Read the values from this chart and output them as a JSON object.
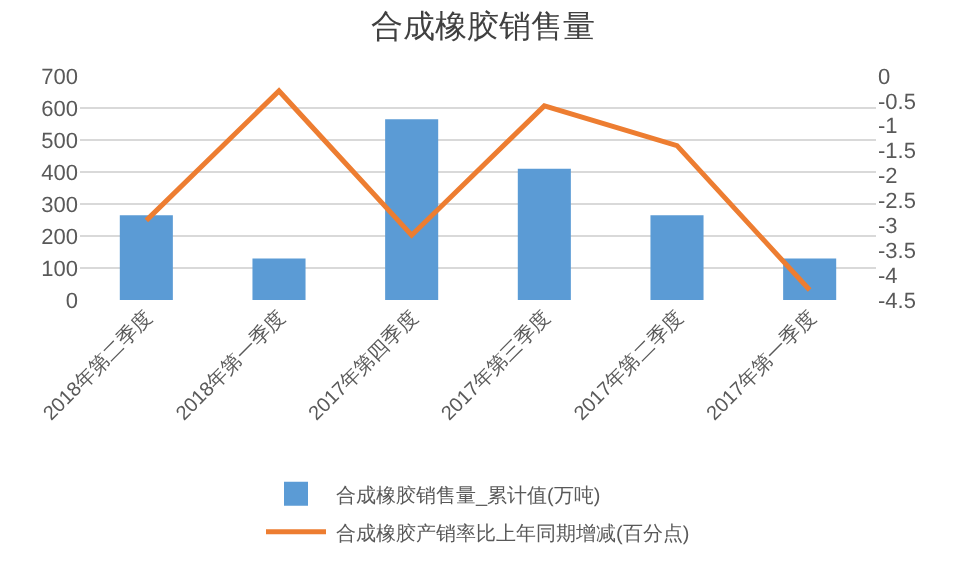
{
  "chart_data": {
    "type": "bar",
    "title": "合成橡胶销售量",
    "categories": [
      "2018年第二季度",
      "2018年第一季度",
      "2017年第四季度",
      "2017年第三季度",
      "2017年第二季度",
      "2017年第一季度"
    ],
    "series": [
      {
        "name": "合成橡胶销售量_累计值(万吨)",
        "color": "#5b9bd5",
        "values": [
          265,
          130,
          565,
          410,
          265,
          130
        ]
      },
      {
        "name": "合成橡胶产销率比上年同期增减(百分点)",
        "type": "line",
        "axis": "y2",
        "color": "#ed7d31",
        "values": [
          -2.9,
          -0.3,
          -3.2,
          -0.6,
          -1.4,
          -4.3
        ]
      }
    ],
    "ylim": [
      0,
      700
    ],
    "yticks": [
      0,
      100,
      200,
      300,
      400,
      500,
      600,
      700
    ],
    "y2lim": [
      -4.5,
      0
    ],
    "y2ticks": [
      -4.5,
      -4,
      -3.5,
      -3,
      -2.5,
      -2,
      -1.5,
      -1,
      -0.5,
      0
    ],
    "grid": "y",
    "legend": "bottom",
    "marker": "none"
  }
}
